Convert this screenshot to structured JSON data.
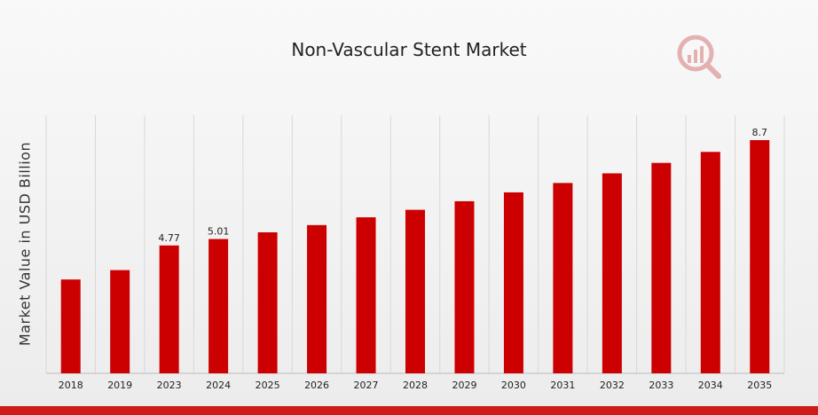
{
  "chart_data": {
    "type": "bar",
    "title": "Non-Vascular Stent Market",
    "ylabel": "Market Value in USD Billion",
    "xlabel": "",
    "categories": [
      "2018",
      "2019",
      "2023",
      "2024",
      "2025",
      "2026",
      "2027",
      "2028",
      "2029",
      "2030",
      "2031",
      "2032",
      "2033",
      "2034",
      "2035"
    ],
    "values": [
      3.5,
      3.85,
      4.77,
      5.01,
      5.26,
      5.53,
      5.82,
      6.1,
      6.42,
      6.75,
      7.1,
      7.46,
      7.85,
      8.26,
      8.7
    ],
    "data_labels": {
      "2023": "4.77",
      "2024": "5.01",
      "2035": "8.7"
    },
    "ylim": [
      0,
      8.7
    ],
    "grid": "vertical",
    "bar_color": "#cc0000"
  },
  "colors": {
    "accent": "#d11a1a",
    "bar": "#cc0000"
  },
  "logo": {
    "icon": "magnifier-bar-chart-icon"
  }
}
